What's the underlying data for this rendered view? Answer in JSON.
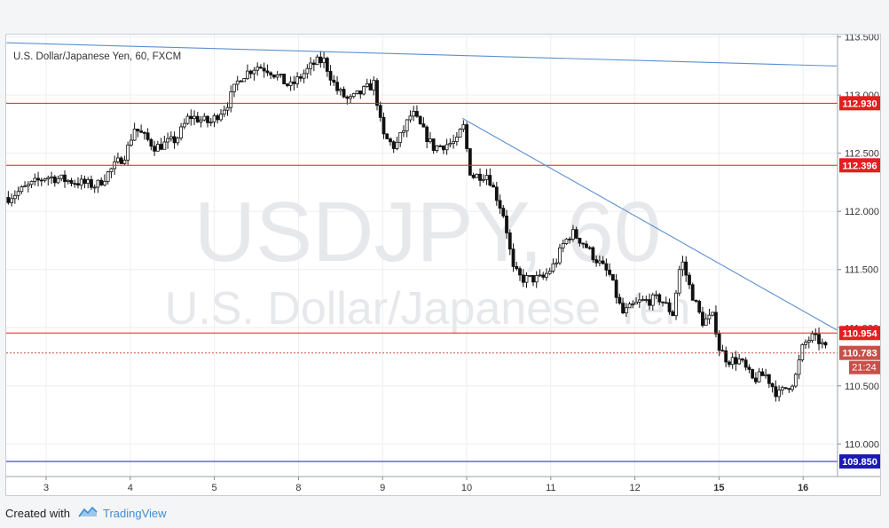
{
  "chart_data": {
    "type": "candlestick",
    "symbol_title": "U.S. Dollar/Japanese Yen, 60, FXCM",
    "watermark_symbol": "USDJPY, 60",
    "watermark_name": "U.S. Dollar/Japanese Yen",
    "ylim": [
      109.72,
      113.52
    ],
    "y_ticks": [
      "110.000",
      "110.500",
      "111.000",
      "111.500",
      "112.000",
      "112.500",
      "113.000",
      "113.500"
    ],
    "x_ticks": [
      "3",
      "4",
      "5",
      "8",
      "9",
      "10",
      "11",
      "12",
      "15",
      "16"
    ],
    "grid": true,
    "horizontal_levels": [
      {
        "value": 112.93,
        "label": "112.930",
        "color": "#e31e1e"
      },
      {
        "value": 112.396,
        "label": "112.396",
        "color": "#e31e1e"
      },
      {
        "value": 110.954,
        "label": "110.954",
        "color": "#e31e1e"
      },
      {
        "value": 109.85,
        "label": "109.850",
        "color": "#1a1ab3"
      }
    ],
    "current_price": {
      "value": 110.783,
      "label": "110.783",
      "countdown": "21:24",
      "color": "#c8504a"
    },
    "trendlines": [
      {
        "from": {
          "day_index": -0.47,
          "price": 113.45
        },
        "to": {
          "day_index": 9.4,
          "price": 113.25
        },
        "color": "#5b8fd0"
      },
      {
        "from": {
          "day_index": 4.95,
          "price": 112.8
        },
        "to": {
          "day_index": 9.4,
          "price": 110.98
        },
        "color": "#5b8fd0"
      }
    ],
    "series_anchors": [
      {
        "t": -0.45,
        "p": 112.12
      },
      {
        "t": 0.0,
        "p": 112.3
      },
      {
        "t": 0.6,
        "p": 112.22
      },
      {
        "t": 0.95,
        "p": 112.5
      },
      {
        "t": 1.05,
        "p": 112.72
      },
      {
        "t": 1.3,
        "p": 112.55
      },
      {
        "t": 1.55,
        "p": 112.62
      },
      {
        "t": 1.7,
        "p": 112.82
      },
      {
        "t": 1.95,
        "p": 112.76
      },
      {
        "t": 2.15,
        "p": 112.92
      },
      {
        "t": 2.3,
        "p": 113.15
      },
      {
        "t": 2.5,
        "p": 113.25
      },
      {
        "t": 2.65,
        "p": 113.22
      },
      {
        "t": 2.9,
        "p": 113.07
      },
      {
        "t": 3.2,
        "p": 113.28
      },
      {
        "t": 3.3,
        "p": 113.3
      },
      {
        "t": 3.45,
        "p": 113.05
      },
      {
        "t": 3.6,
        "p": 112.95
      },
      {
        "t": 3.9,
        "p": 113.1
      },
      {
        "t": 4.0,
        "p": 112.65
      },
      {
        "t": 4.15,
        "p": 112.55
      },
      {
        "t": 4.35,
        "p": 112.85
      },
      {
        "t": 4.6,
        "p": 112.55
      },
      {
        "t": 4.9,
        "p": 112.6
      },
      {
        "t": 4.95,
        "p": 112.78
      },
      {
        "t": 5.05,
        "p": 112.3
      },
      {
        "t": 5.25,
        "p": 112.32
      },
      {
        "t": 5.45,
        "p": 111.95
      },
      {
        "t": 5.55,
        "p": 111.5
      },
      {
        "t": 5.65,
        "p": 111.42
      },
      {
        "t": 5.9,
        "p": 111.42
      },
      {
        "t": 6.05,
        "p": 111.55
      },
      {
        "t": 6.15,
        "p": 111.72
      },
      {
        "t": 6.25,
        "p": 111.82
      },
      {
        "t": 6.4,
        "p": 111.72
      },
      {
        "t": 6.5,
        "p": 111.62
      },
      {
        "t": 6.7,
        "p": 111.45
      },
      {
        "t": 6.85,
        "p": 111.12
      },
      {
        "t": 7.05,
        "p": 111.22
      },
      {
        "t": 7.3,
        "p": 111.25
      },
      {
        "t": 7.45,
        "p": 111.12
      },
      {
        "t": 7.55,
        "p": 111.6
      },
      {
        "t": 7.65,
        "p": 111.35
      },
      {
        "t": 7.8,
        "p": 111.05
      },
      {
        "t": 7.95,
        "p": 111.1
      },
      {
        "t": 7.98,
        "p": 110.85
      },
      {
        "t": 8.1,
        "p": 110.72
      },
      {
        "t": 8.25,
        "p": 110.72
      },
      {
        "t": 8.4,
        "p": 110.55
      },
      {
        "t": 8.55,
        "p": 110.6
      },
      {
        "t": 8.7,
        "p": 110.42
      },
      {
        "t": 8.9,
        "p": 110.55
      },
      {
        "t": 9.0,
        "p": 110.85
      },
      {
        "t": 9.1,
        "p": 110.92
      },
      {
        "t": 9.2,
        "p": 110.88
      },
      {
        "t": 9.3,
        "p": 110.783
      }
    ]
  },
  "footer": {
    "created_with": "Created with",
    "brand": "TradingView"
  }
}
